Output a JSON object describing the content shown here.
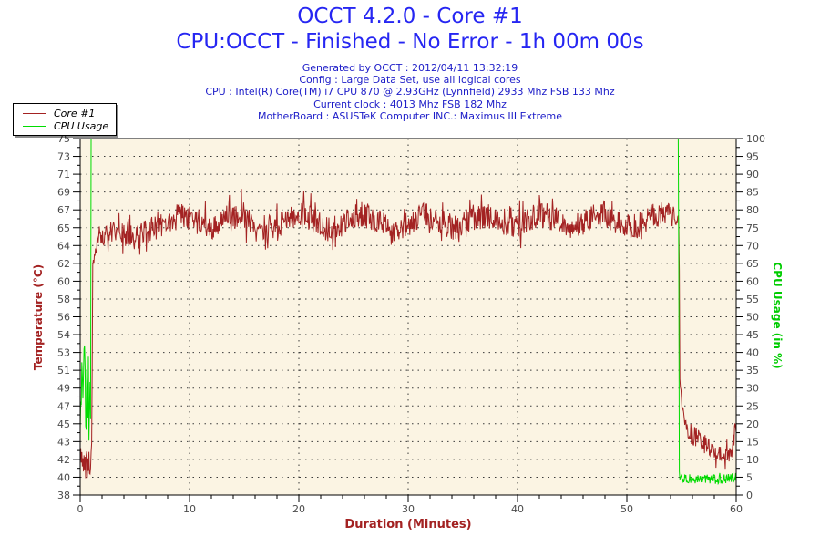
{
  "header": {
    "title_line1": "OCCT 4.2.0 - Core #1",
    "title_line2": "CPU:OCCT - Finished - No Error - 1h 00m 00s",
    "info_lines": [
      "Generated by OCCT : 2012/04/11 13:32:19",
      "Config : Large Data Set, use all logical cores",
      "CPU : Intel(R) Core(TM) i7 CPU 870 @ 2.93GHz (Lynnfield) 2933 Mhz FSB 133 Mhz",
      "Current clock : 4013 Mhz FSB 182 Mhz",
      "MotherBoard : ASUSTeK Computer INC.: Maximus III Extreme"
    ]
  },
  "legend": {
    "items": [
      {
        "label": "Core #1",
        "color": "#a32222"
      },
      {
        "label": "CPU Usage",
        "color": "#00dc00"
      }
    ]
  },
  "colors": {
    "title_blue": "#2626f2",
    "info_blue": "#1c1cc8",
    "temperature_red": "#a32222",
    "cpu_green": "#00dc00",
    "plot_background": "#fbf4e3",
    "grid_dots": "#3a3a3a",
    "tick_label_gray": "#4a4a4a",
    "axis_black": "#000000"
  },
  "chart_data": {
    "type": "line",
    "xlabel": "Duration (Minutes)",
    "ylabel_left": "Temperature (°C)",
    "ylabel_right": "CPU Usage (in %)",
    "x_axis": {
      "min": 0,
      "max": 60,
      "major_tick_labels": [
        0,
        10,
        20,
        30,
        40,
        50,
        60
      ],
      "minor_tick_step": 2
    },
    "left_axis": {
      "min": 38,
      "max": 75,
      "tick_labels_top_to_bottom": [
        "75",
        "73",
        "71",
        "69",
        "67",
        "65",
        "64",
        "62",
        "60",
        "58",
        "56",
        "54",
        "53",
        "51",
        "49",
        "47",
        "45",
        "43",
        "42",
        "40",
        "38"
      ]
    },
    "right_axis": {
      "min": 0,
      "max": 100,
      "step": 5,
      "tick_labels_top_to_bottom": [
        "100",
        "95",
        "90",
        "85",
        "80",
        "75",
        "70",
        "65",
        "60",
        "55",
        "50",
        "45",
        "40",
        "35",
        "30",
        "25",
        "20",
        "15",
        "10",
        "5",
        "0"
      ]
    },
    "grid": {
      "horizontal_at_every_left_label": true,
      "vertical_at_minutes": [
        10,
        20,
        30,
        40,
        50
      ]
    },
    "series": [
      {
        "name": "Core #1",
        "axis": "left",
        "color": "#a32222",
        "unit": "°C",
        "keypoints_format": "[minute, value_midline, noise_half_band]",
        "keypoints": [
          [
            0,
            41.8,
            1.6
          ],
          [
            0.5,
            41.5,
            1.8
          ],
          [
            0.95,
            41.5,
            1.8
          ],
          [
            1.05,
            44,
            2
          ],
          [
            1.15,
            60,
            2
          ],
          [
            1.3,
            63.5,
            1
          ],
          [
            1.6,
            64.3,
            1
          ],
          [
            2,
            65.1,
            1.2
          ],
          [
            3,
            65.4,
            1.2
          ],
          [
            4.2,
            64.9,
            1.3
          ],
          [
            5.2,
            64.7,
            1.3
          ],
          [
            6,
            65.3,
            1.3
          ],
          [
            7,
            65.8,
            1.3
          ],
          [
            8,
            66.3,
            1.3
          ],
          [
            9.5,
            67.2,
            1.4
          ],
          [
            10.8,
            66.2,
            1.3
          ],
          [
            12,
            65.7,
            1.3
          ],
          [
            13.5,
            67,
            1.4
          ],
          [
            15,
            67.1,
            1.4
          ],
          [
            16.5,
            65.8,
            1.3
          ],
          [
            18,
            65.9,
            1.3
          ],
          [
            19.5,
            67.2,
            1.4
          ],
          [
            21,
            66.9,
            1.4
          ],
          [
            22.5,
            65.6,
            1.3
          ],
          [
            24,
            66,
            1.3
          ],
          [
            25.5,
            67.2,
            1.4
          ],
          [
            27,
            66.7,
            1.3
          ],
          [
            28.5,
            65.5,
            1.3
          ],
          [
            30,
            66.1,
            1.3
          ],
          [
            31.5,
            67.2,
            1.4
          ],
          [
            33,
            66.4,
            1.3
          ],
          [
            34.5,
            65.6,
            1.3
          ],
          [
            36,
            66.9,
            1.4
          ],
          [
            37.5,
            66.9,
            1.3
          ],
          [
            39,
            65.6,
            1.3
          ],
          [
            40.5,
            66.2,
            1.3
          ],
          [
            42,
            67.2,
            1.4
          ],
          [
            43.5,
            66.6,
            1.3
          ],
          [
            45,
            65.7,
            1.3
          ],
          [
            46.5,
            66.7,
            1.3
          ],
          [
            48,
            67.2,
            1.4
          ],
          [
            49.5,
            66.1,
            1.3
          ],
          [
            51,
            65.9,
            1.3
          ],
          [
            52.5,
            67,
            1.4
          ],
          [
            53.8,
            67.1,
            1.3
          ],
          [
            54.6,
            66.8,
            1
          ],
          [
            54.78,
            66,
            0.5
          ],
          [
            54.85,
            50,
            1
          ],
          [
            55.1,
            47,
            1.3
          ],
          [
            55.5,
            45.2,
            1.3
          ],
          [
            56,
            44.3,
            1.2
          ],
          [
            56.8,
            43.5,
            1.1
          ],
          [
            57.6,
            42.8,
            1
          ],
          [
            58.5,
            42.3,
            0.8
          ],
          [
            59.3,
            42.2,
            0.8
          ],
          [
            59.7,
            43,
            1
          ],
          [
            59.9,
            44.6,
            1
          ],
          [
            60,
            44.2,
            1
          ]
        ]
      },
      {
        "name": "CPU Usage",
        "axis": "right",
        "color": "#00dc00",
        "unit": "%",
        "keypoints_format": "[minute, value_midline, noise_half_band]",
        "keypoints": [
          [
            0,
            29,
            13
          ],
          [
            0.9,
            28,
            13
          ],
          [
            0.95,
            30,
            13
          ],
          [
            1,
            100,
            0
          ],
          [
            54.72,
            100,
            0
          ],
          [
            54.8,
            6,
            1.5
          ],
          [
            55.2,
            4.6,
            1.3
          ],
          [
            58,
            4.4,
            1.3
          ],
          [
            60,
            4.8,
            1.4
          ]
        ]
      }
    ],
    "render_noise": {
      "seed": 20120411,
      "sample_step_minutes": 0.05,
      "spike_chance": 0.08,
      "spike_scale": 1.0
    }
  }
}
